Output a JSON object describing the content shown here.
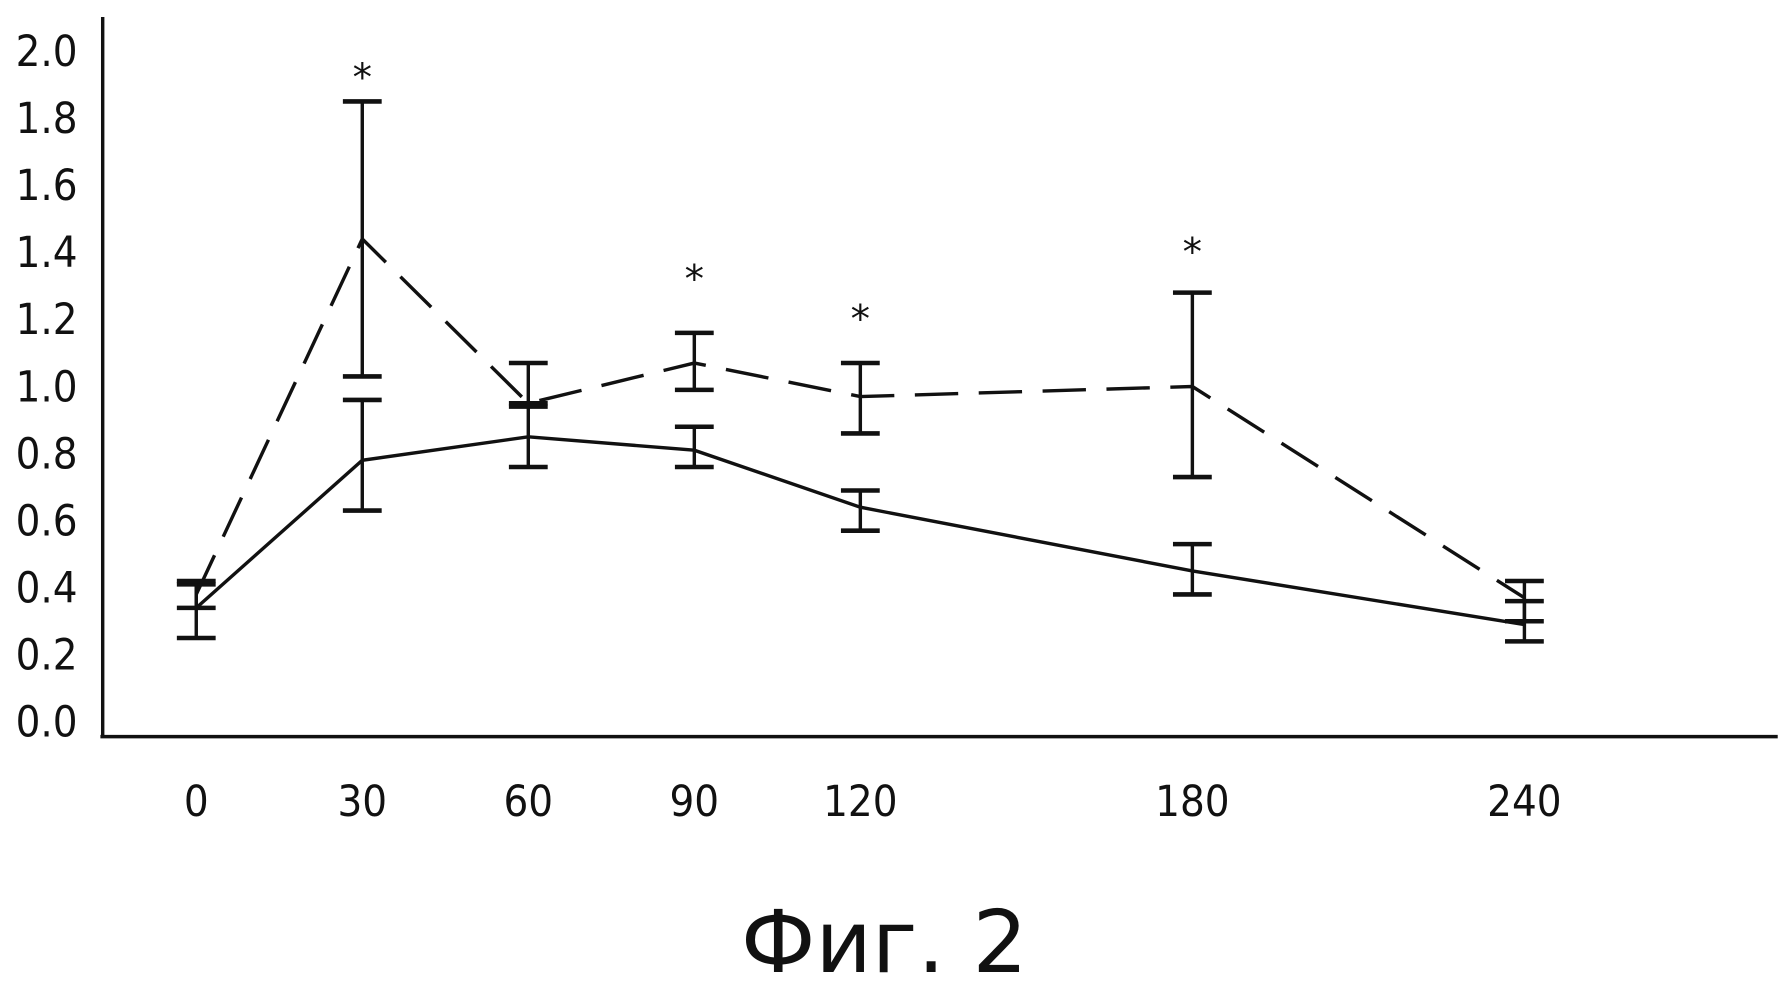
{
  "chart_data": {
    "type": "line",
    "title": "",
    "caption": "Фиг. 2",
    "xlabel": "",
    "ylabel": "",
    "x": [
      0,
      30,
      60,
      90,
      120,
      180,
      240
    ],
    "x_tick_labels": [
      "0",
      "30",
      "60",
      "90",
      "120",
      "180",
      "240"
    ],
    "y_tick_labels": [
      "0.0",
      "0.2",
      "0.4",
      "0.6",
      "0.8",
      "1.0",
      "1.2",
      "1.4",
      "1.6",
      "1.8",
      "2.0"
    ],
    "ylim": [
      0,
      2.0
    ],
    "xlim": [
      0,
      285
    ],
    "grid": false,
    "series": [
      {
        "name": "solid",
        "style": "solid",
        "values": [
          0.34,
          0.78,
          0.85,
          0.81,
          0.64,
          0.45,
          0.29
        ],
        "err_low": [
          0.25,
          0.63,
          0.76,
          0.76,
          0.57,
          0.38,
          0.24
        ],
        "err_high": [
          0.41,
          0.96,
          0.94,
          0.88,
          0.69,
          0.53,
          0.36
        ]
      },
      {
        "name": "dashed",
        "style": "dashed",
        "values": [
          0.38,
          1.44,
          0.95,
          1.07,
          0.97,
          1.0,
          0.37
        ],
        "err_low": [
          0.34,
          1.03,
          0.95,
          0.99,
          0.86,
          0.73,
          0.3
        ],
        "err_high": [
          0.42,
          1.85,
          1.07,
          1.16,
          1.07,
          1.28,
          0.42
        ]
      }
    ],
    "annotations": [
      {
        "x": 30,
        "y": 1.95,
        "text": "*"
      },
      {
        "x": 90,
        "y": 1.35,
        "text": "*"
      },
      {
        "x": 120,
        "y": 1.23,
        "text": "*"
      },
      {
        "x": 180,
        "y": 1.43,
        "text": "*"
      }
    ],
    "color": "#111111"
  }
}
